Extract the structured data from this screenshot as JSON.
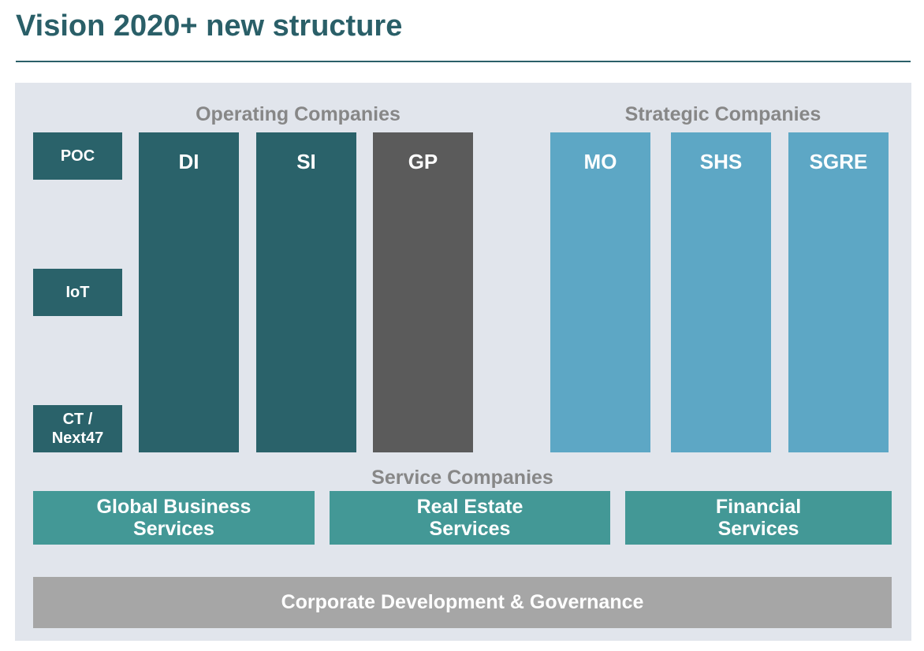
{
  "title": "Vision 2020+ new structure",
  "sections": {
    "operating_label": "Operating Companies",
    "strategic_label": "Strategic Companies",
    "service_label": "Service Companies"
  },
  "side_units": [
    {
      "line1": "POC",
      "line2": ""
    },
    {
      "line1": "IoT",
      "line2": ""
    },
    {
      "line1": "CT /",
      "line2": "Next47"
    }
  ],
  "operating_companies": [
    "DI",
    "SI",
    "GP"
  ],
  "strategic_companies": [
    "MO",
    "SHS",
    "SGRE"
  ],
  "service_companies": [
    {
      "line1": "Global Business",
      "line2": "Services"
    },
    {
      "line1": "Real Estate",
      "line2": "Services"
    },
    {
      "line1": "Financial",
      "line2": "Services"
    }
  ],
  "governance_label": "Corporate Development & Governance",
  "colors": {
    "operating": "#2a626a",
    "gp": "#5b5b5b",
    "strategic": "#5da7c5",
    "service": "#439896",
    "governance": "#a6a6a6",
    "panel": "#e1e5ec",
    "title": "#2a5f68"
  }
}
